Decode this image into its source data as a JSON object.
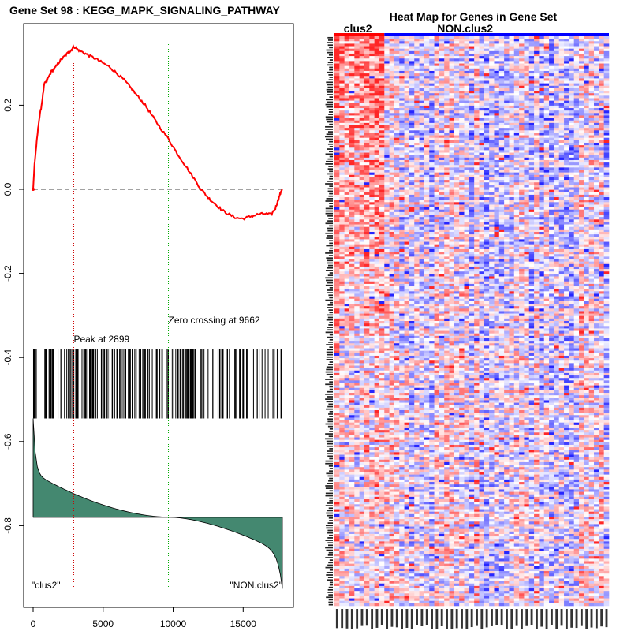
{
  "chart_data": [
    {
      "type": "line",
      "title": "Gene Set  98 : KEGG_MAPK_SIGNALING_PATHWAY",
      "xlabel": "",
      "ylabel": "",
      "xlim": [
        0,
        17800
      ],
      "ylim": [
        -0.95,
        0.35
      ],
      "x_ticks": [
        {
          "value": 0,
          "label": "0"
        },
        {
          "value": 5000,
          "label": "5000"
        },
        {
          "value": 10000,
          "label": "10000"
        },
        {
          "value": 15000,
          "label": "15000"
        }
      ],
      "y_ticks": [
        {
          "value": 0.2,
          "label": "0.2"
        },
        {
          "value": 0.0,
          "label": "0.0"
        },
        {
          "value": -0.2,
          "label": "-0.2"
        },
        {
          "value": -0.4,
          "label": "-0.4"
        },
        {
          "value": -0.6,
          "label": "-0.6"
        },
        {
          "value": -0.8,
          "label": "-0.8"
        }
      ],
      "enrichment_score": {
        "x": [
          0,
          100,
          250,
          400,
          600,
          800,
          1000,
          1300,
          1600,
          1900,
          2200,
          2500,
          2700,
          2899,
          3200,
          3600,
          4000,
          4500,
          5000,
          5500,
          6000,
          6500,
          7000,
          7500,
          8000,
          8500,
          9000,
          9662,
          10200,
          10800,
          11400,
          12000,
          12500,
          13000,
          13500,
          14000,
          14500,
          15000,
          15500,
          16000,
          16500,
          17000,
          17300,
          17500,
          17700,
          17800
        ],
        "y": [
          0.0,
          0.06,
          0.11,
          0.16,
          0.2,
          0.25,
          0.26,
          0.28,
          0.29,
          0.305,
          0.315,
          0.325,
          0.33,
          0.34,
          0.332,
          0.325,
          0.318,
          0.31,
          0.3,
          0.29,
          0.275,
          0.26,
          0.24,
          0.22,
          0.2,
          0.175,
          0.15,
          0.12,
          0.09,
          0.06,
          0.03,
          0.0,
          -0.02,
          -0.035,
          -0.05,
          -0.06,
          -0.068,
          -0.07,
          -0.065,
          -0.06,
          -0.058,
          -0.06,
          -0.045,
          -0.025,
          -0.005,
          0.0
        ]
      },
      "peak": {
        "x": 2899,
        "label": "Peak at 2899"
      },
      "zero_crossing": {
        "x": 9662,
        "label": "Zero crossing at 9662"
      },
      "baseline": 0.0,
      "hit_band": {
        "top": -0.38,
        "bottom": -0.545
      },
      "hit_count": 200,
      "ranked_metric": {
        "baseline": -0.78,
        "start": -0.545,
        "end": -0.95
      },
      "left_label": "\"clus2\"",
      "right_label": "\"NON.clus2\"",
      "colors": {
        "es_line": "#ff0000",
        "peak_line": "#cc0000",
        "zero_line": "#00aa00",
        "hits": "#000000",
        "metric_fill": "#448870"
      }
    },
    {
      "type": "heatmap",
      "title": "Heat Map for Genes in Gene Set",
      "groups": [
        {
          "name": "clus2",
          "color": "#ff0000",
          "columns": 10
        },
        {
          "name": "NON.clus2",
          "color": "#0000ff",
          "columns": 45
        }
      ],
      "rows": 230,
      "colors": {
        "high": "#ff0000",
        "low": "#0000ff",
        "mid": "#ffffff"
      }
    }
  ]
}
